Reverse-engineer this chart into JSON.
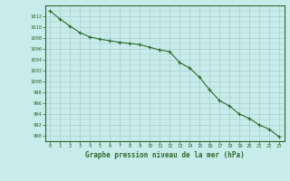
{
  "x": [
    0,
    1,
    2,
    3,
    4,
    5,
    6,
    7,
    8,
    9,
    10,
    11,
    12,
    13,
    14,
    15,
    16,
    17,
    18,
    19,
    20,
    21,
    22,
    23
  ],
  "y": [
    1013.0,
    1011.5,
    1010.2,
    1009.0,
    1008.2,
    1007.8,
    1007.5,
    1007.2,
    1007.0,
    1006.8,
    1006.3,
    1005.8,
    1005.5,
    1003.5,
    1002.5,
    1000.8,
    998.5,
    996.5,
    995.5,
    994.0,
    993.2,
    992.0,
    991.2,
    989.8
  ],
  "line_color": "#2d6a2d",
  "marker_color": "#2d6a2d",
  "bg_color": "#c8ecea",
  "grid_color": "#a0c8c8",
  "border_color": "#2d6a2d",
  "xlabel": "Graphe pression niveau de la mer (hPa)",
  "xlabel_color": "#2d6a2d",
  "tick_color": "#2d6a2d",
  "ylim_min": 989,
  "ylim_max": 1014,
  "fig_width": 3.2,
  "fig_height": 2.0,
  "dpi": 100
}
